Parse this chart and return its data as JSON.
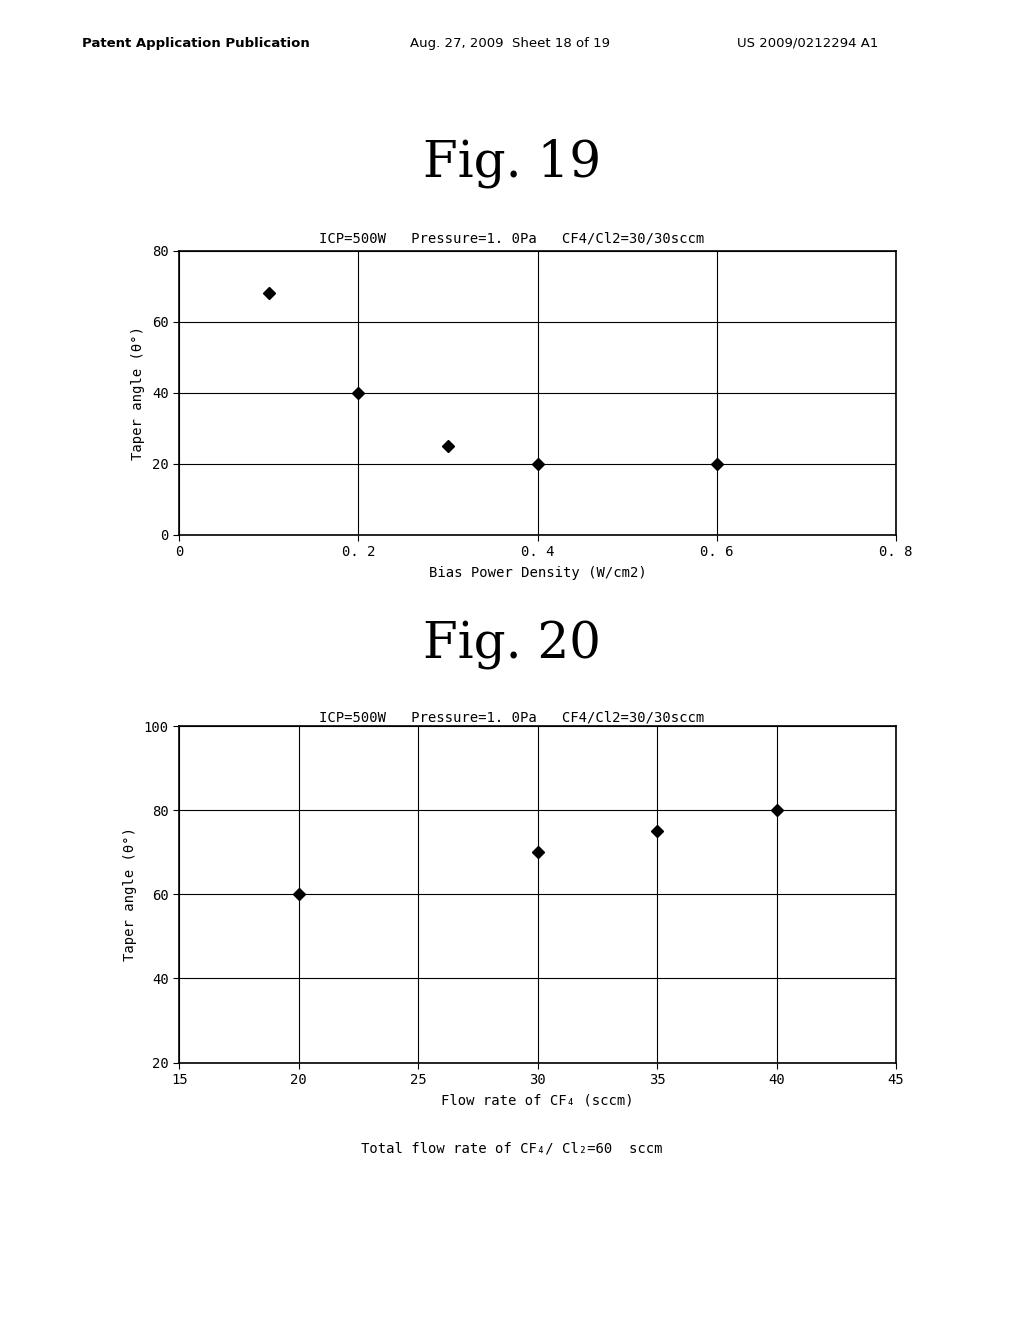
{
  "fig19": {
    "title_fig": "Fig. 19",
    "subtitle": "ICP=500W   Pressure=1. 0Pa   CF4/Cl2=30/30sccm",
    "xlabel": "Bias Power Density (W/cm2)",
    "ylabel": "Taper angle (θ°)",
    "xlim": [
      0,
      0.8
    ],
    "ylim": [
      0,
      80
    ],
    "xticks": [
      0,
      0.2,
      0.4,
      0.6,
      0.8
    ],
    "yticks": [
      0,
      20,
      40,
      60,
      80
    ],
    "xtick_labels": [
      "0",
      "0. 2",
      "0. 4",
      "0. 6",
      "0. 8"
    ],
    "ytick_labels": [
      "0",
      "20",
      "40",
      "60",
      "80"
    ],
    "data_x": [
      0.1,
      0.2,
      0.3,
      0.4,
      0.6
    ],
    "data_y": [
      68,
      40,
      25,
      20,
      20
    ]
  },
  "fig20": {
    "title_fig": "Fig. 20",
    "subtitle": "ICP=500W   Pressure=1. 0Pa   CF4/Cl2=30/30sccm",
    "xlabel": "Flow rate of CF₄ (sccm)",
    "ylabel": "Taper angle (θ°)",
    "xlabel2": "Total flow rate of CF₄/ Cl₂=60  sccm",
    "xlim": [
      15,
      45
    ],
    "ylim": [
      20,
      100
    ],
    "xticks": [
      15,
      20,
      25,
      30,
      35,
      40,
      45
    ],
    "yticks": [
      20,
      40,
      60,
      80,
      100
    ],
    "xtick_labels": [
      "15",
      "20",
      "25",
      "30",
      "35",
      "40",
      "45"
    ],
    "ytick_labels": [
      "20",
      "40",
      "60",
      "80",
      "100"
    ],
    "data_x": [
      20,
      30,
      35,
      40
    ],
    "data_y": [
      60,
      70,
      75,
      80
    ]
  },
  "header_left": "Patent Application Publication",
  "header_mid": "Aug. 27, 2009  Sheet 18 of 19",
  "header_right": "US 2009/0212294 A1",
  "bg_color": "#ffffff",
  "text_color": "#000000",
  "marker_color": "#000000"
}
